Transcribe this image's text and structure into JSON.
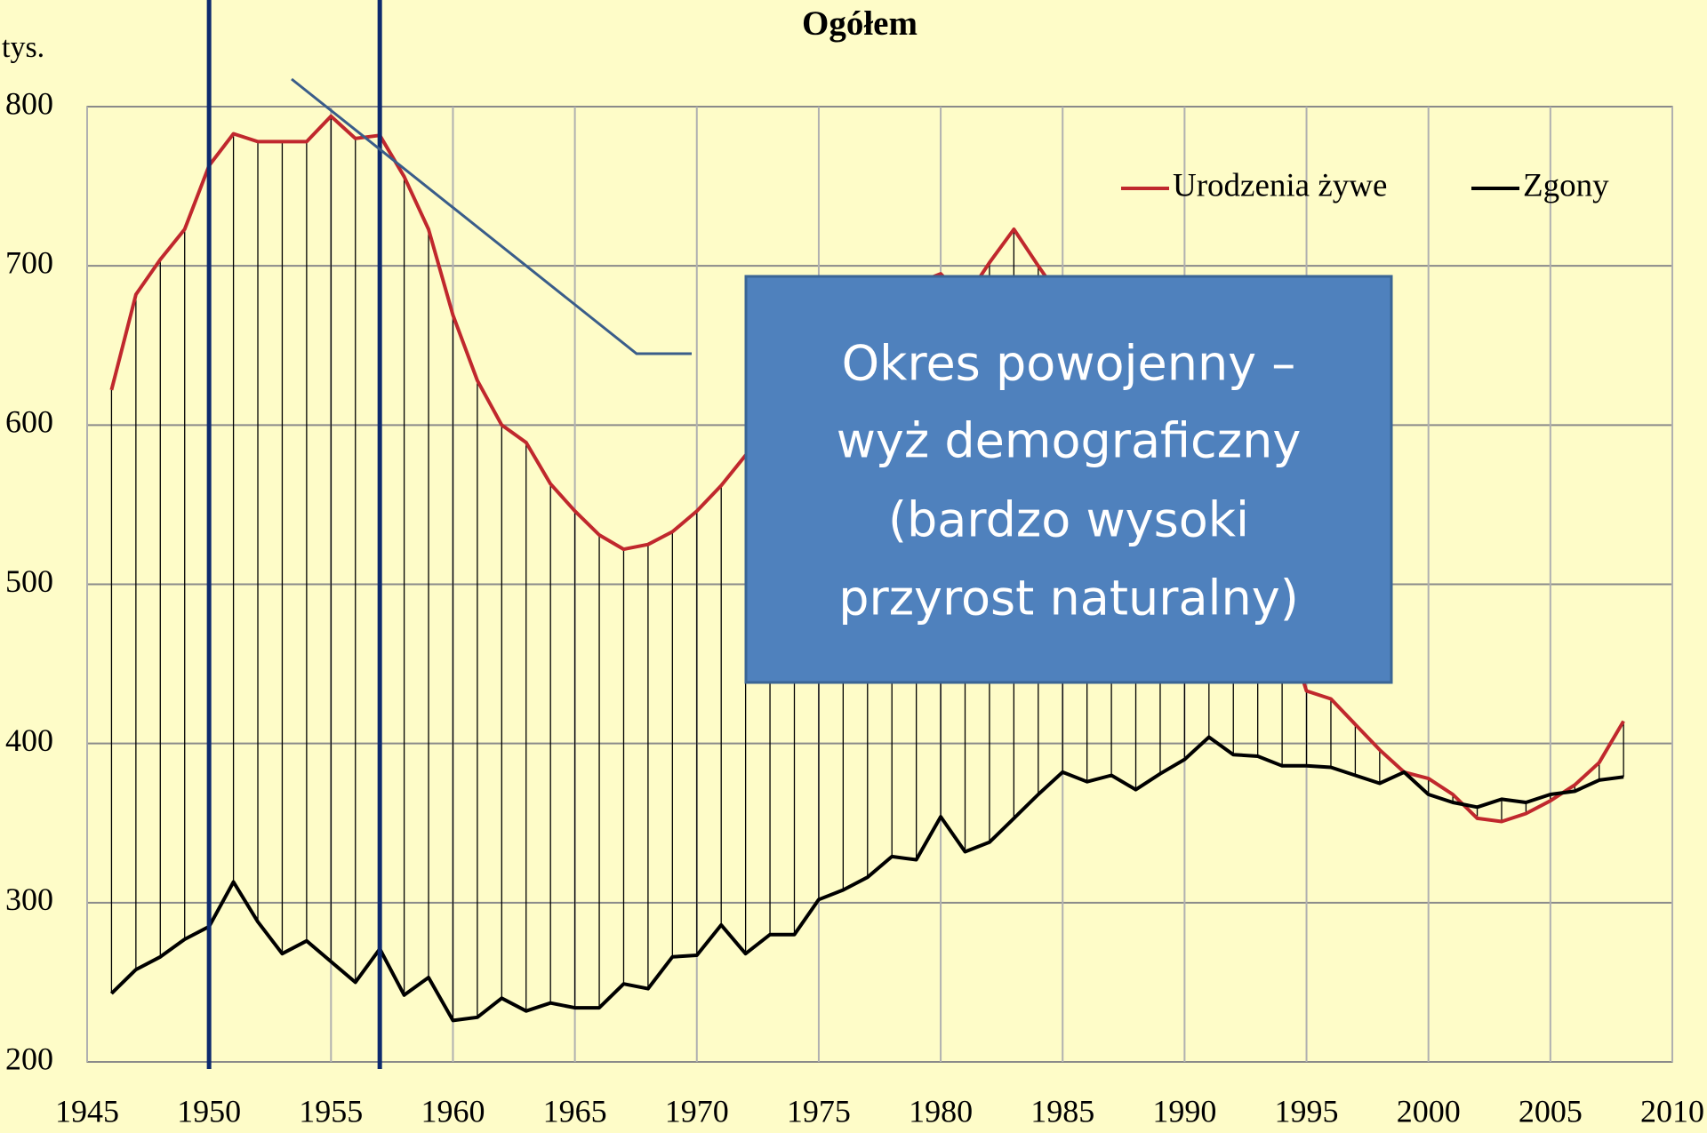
{
  "chart_data": {
    "type": "line",
    "title": "Ogółem",
    "y_label": "tys.",
    "x": [
      1946,
      1947,
      1948,
      1949,
      1950,
      1951,
      1952,
      1953,
      1954,
      1955,
      1956,
      1957,
      1958,
      1959,
      1960,
      1961,
      1962,
      1963,
      1964,
      1965,
      1966,
      1967,
      1968,
      1969,
      1970,
      1971,
      1972,
      1973,
      1974,
      1975,
      1976,
      1977,
      1978,
      1979,
      1980,
      1981,
      1982,
      1983,
      1984,
      1985,
      1986,
      1987,
      1988,
      1989,
      1990,
      1991,
      1992,
      1993,
      1994,
      1995,
      1996,
      1997,
      1998,
      1999,
      2000,
      2001,
      2002,
      2003,
      2004,
      2005,
      2006,
      2007,
      2008
    ],
    "series": [
      {
        "name": "Urodzenia żywe",
        "color": "#c0282d",
        "values": [
          622,
          682,
          704,
          723,
          763,
          783,
          778,
          778,
          778,
          794,
          780,
          782,
          756,
          723,
          669,
          628,
          600,
          589,
          563,
          546,
          531,
          522,
          525,
          533,
          546,
          562,
          581,
          599,
          621,
          643,
          670,
          665,
          671,
          689,
          695,
          679,
          702,
          723,
          700,
          678,
          635,
          606,
          587,
          563,
          546,
          547,
          515,
          494,
          481,
          433,
          428,
          412,
          396,
          382,
          378,
          368,
          353,
          351,
          356,
          364,
          374,
          388,
          414
        ]
      },
      {
        "name": "Zgony",
        "color": "#000000",
        "values": [
          243,
          258,
          266,
          277,
          285,
          313,
          288,
          268,
          276,
          263,
          250,
          271,
          242,
          253,
          226,
          228,
          240,
          232,
          237,
          234,
          234,
          249,
          246,
          266,
          267,
          286,
          268,
          280,
          280,
          302,
          308,
          316,
          329,
          327,
          354,
          332,
          338,
          353,
          368,
          382,
          376,
          380,
          371,
          381,
          390,
          404,
          393,
          392,
          386,
          386,
          385,
          380,
          375,
          382,
          368,
          363,
          360,
          365,
          363,
          368,
          370,
          377,
          379
        ]
      }
    ],
    "xlim": [
      1945,
      2010
    ],
    "xticks": [
      1945,
      1950,
      1955,
      1960,
      1965,
      1970,
      1975,
      1980,
      1985,
      1990,
      1995,
      2000,
      2005,
      2010
    ],
    "ylim": [
      200,
      800
    ],
    "yticks": [
      200,
      300,
      400,
      500,
      600,
      700,
      800
    ],
    "grid": true,
    "legend": "upper right",
    "highlight_years": [
      1950,
      1957
    ],
    "highlight_color": "#0d2a6e",
    "annotation": {
      "lines": [
        "Okres powojenny –",
        "wyż demograficzny",
        "(bardzo wysoki",
        "przyrost naturalny)"
      ],
      "color": "#4f81bd"
    }
  }
}
